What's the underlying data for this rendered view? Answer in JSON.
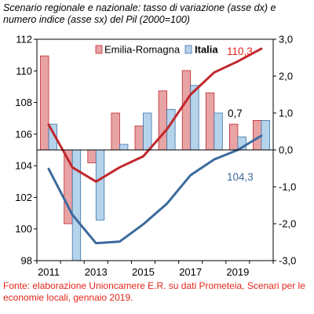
{
  "chart_data": {
    "type": "bar+line",
    "title": "Scenario regionale e nazionale: tasso di variazione (asse dx) e numero indice (asse sx) del Pil (2000=100)",
    "categories": [
      "2011",
      "2012",
      "2013",
      "2014",
      "2015",
      "2016",
      "2017",
      "2018",
      "2019",
      "2020"
    ],
    "x_tick_labels": [
      "2011",
      "2013",
      "2015",
      "2017",
      "2019"
    ],
    "y_left": {
      "min": 98,
      "max": 112,
      "step": 2,
      "tick_labels": [
        "98",
        "100",
        "102",
        "104",
        "106",
        "108",
        "110",
        "112"
      ]
    },
    "y_right": {
      "min": -3.0,
      "max": 3.0,
      "step": 1.0,
      "tick_labels": [
        "-3,0",
        "-2,0",
        "-1,0",
        "0,0",
        "1,0",
        "2,0",
        "3,0"
      ]
    },
    "bar_series": [
      {
        "name": "Emilia-Romagna",
        "axis": "right",
        "color": "#e8a3a5",
        "edge": "#c0282d",
        "values": [
          2.55,
          -2.0,
          -0.35,
          1.0,
          0.65,
          1.6,
          2.15,
          1.55,
          0.7,
          0.8
        ]
      },
      {
        "name": "Italia",
        "axis": "right",
        "color": "#b5d3ea",
        "edge": "#3c73a8",
        "values": [
          0.7,
          -3.0,
          -1.9,
          0.15,
          1.0,
          1.1,
          1.75,
          1.0,
          0.35,
          0.8
        ]
      }
    ],
    "line_series": [
      {
        "name": "Emilia-Romagna",
        "axis": "left",
        "color": "#c0282d",
        "values": [
          106.6,
          103.9,
          103.0,
          103.9,
          104.6,
          106.3,
          108.5,
          109.9,
          110.6,
          111.4
        ]
      },
      {
        "name": "Italia",
        "axis": "left",
        "color": "#3c6a9c",
        "values": [
          103.8,
          100.9,
          99.1,
          99.2,
          100.3,
          101.6,
          103.4,
          104.4,
          105.0,
          105.9
        ]
      }
    ],
    "annotations": [
      {
        "text": "110,3",
        "color": "#e3261b"
      },
      {
        "text": "0,7",
        "color": "#000000"
      },
      {
        "text": "104,3",
        "color": "#3c6a9c"
      }
    ],
    "legend": {
      "position": "top",
      "items": [
        "Emilia-Romagna",
        "Italia"
      ]
    }
  },
  "source_note": "Fonte: elaborazione Unioncamere E.R. su dati Prometeia, Scenari per le economie locali, gennaio 2019."
}
